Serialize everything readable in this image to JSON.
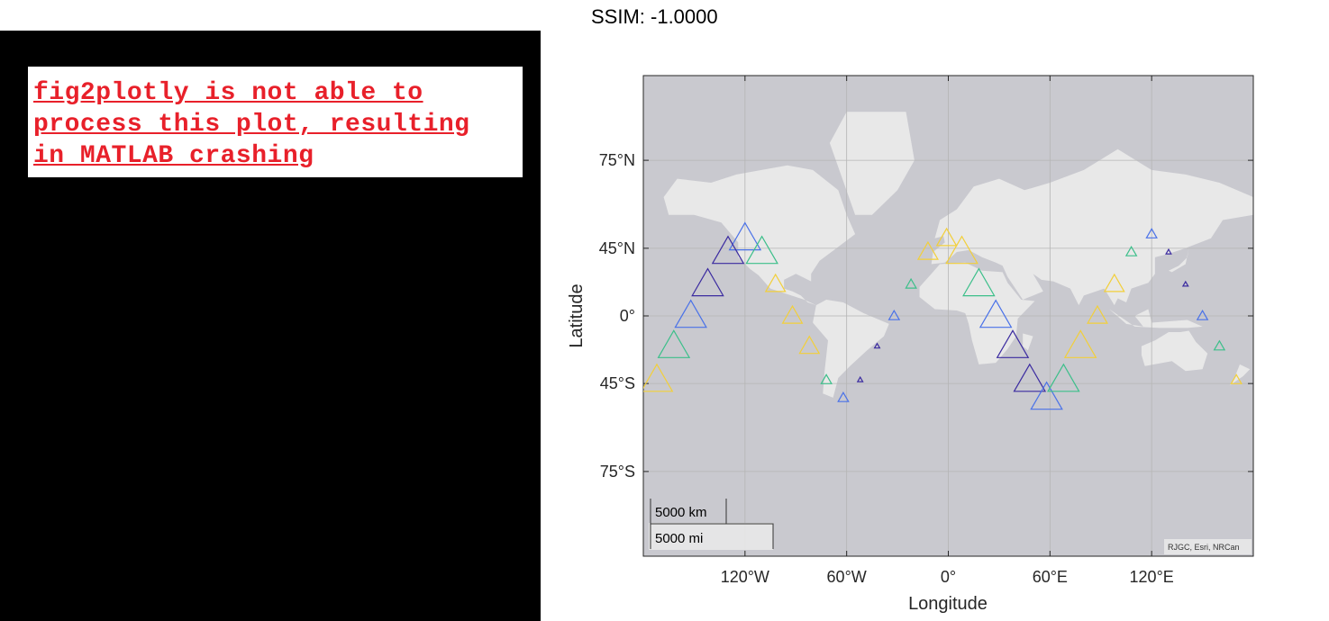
{
  "error_panel": {
    "lines": [
      "fig2plotly is not able to",
      "process this plot, resulting",
      "in MATLAB crashing"
    ]
  },
  "chart_data": {
    "type": "scatter",
    "title": "SSIM: -1.0000",
    "xlabel": "Longitude",
    "ylabel": "Latitude",
    "xlim": [
      -180,
      180
    ],
    "ylim": [
      -85,
      85
    ],
    "grid": true,
    "x_ticks": [
      {
        "value": -120,
        "label": "120°W"
      },
      {
        "value": -60,
        "label": "60°W"
      },
      {
        "value": 0,
        "label": "0°"
      },
      {
        "value": 60,
        "label": "60°E"
      },
      {
        "value": 120,
        "label": "120°E"
      }
    ],
    "y_ticks": [
      {
        "value": 75,
        "label": "75°N"
      },
      {
        "value": 45,
        "label": "45°N"
      },
      {
        "value": 0,
        "label": "0°"
      },
      {
        "value": -45,
        "label": "45°S"
      },
      {
        "value": -75,
        "label": "75°S"
      }
    ],
    "marker": "triangle",
    "colors": {
      "purple": "#3b2ba0",
      "blue": "#4a72e8",
      "green": "#3cbf8a",
      "yellow": "#f2cf3a",
      "ocean": "#c9c9cf",
      "land": "#e8e8e8"
    },
    "points": [
      {
        "lon": -120,
        "lat": 50,
        "size": 3,
        "color": "blue"
      },
      {
        "lon": -130,
        "lat": 43,
        "size": 3,
        "color": "purple"
      },
      {
        "lon": -110,
        "lat": 43,
        "size": 3,
        "color": "green"
      },
      {
        "lon": -142,
        "lat": 23,
        "size": 3,
        "color": "purple"
      },
      {
        "lon": -102,
        "lat": 23,
        "size": 2,
        "color": "yellow"
      },
      {
        "lon": -152,
        "lat": 0,
        "size": 3,
        "color": "blue"
      },
      {
        "lon": -92,
        "lat": 0,
        "size": 2,
        "color": "yellow"
      },
      {
        "lon": -162,
        "lat": -22,
        "size": 3,
        "color": "green"
      },
      {
        "lon": -82,
        "lat": -22,
        "size": 2,
        "color": "yellow"
      },
      {
        "lon": -172,
        "lat": -43,
        "size": 3,
        "color": "yellow"
      },
      {
        "lon": -72,
        "lat": -43,
        "size": 1,
        "color": "green"
      },
      {
        "lon": -62,
        "lat": -52,
        "size": 1,
        "color": "blue"
      },
      {
        "lon": -52,
        "lat": -43,
        "size": 0,
        "color": "purple"
      },
      {
        "lon": -42,
        "lat": -22,
        "size": 0,
        "color": "purple"
      },
      {
        "lon": -32,
        "lat": 0,
        "size": 1,
        "color": "blue"
      },
      {
        "lon": -22,
        "lat": 23,
        "size": 1,
        "color": "green"
      },
      {
        "lon": -12,
        "lat": 43,
        "size": 2,
        "color": "yellow"
      },
      {
        "lon": -1,
        "lat": 50,
        "size": 2,
        "color": "yellow"
      },
      {
        "lon": 8,
        "lat": 43,
        "size": 3,
        "color": "yellow"
      },
      {
        "lon": 18,
        "lat": 23,
        "size": 3,
        "color": "green"
      },
      {
        "lon": 28,
        "lat": 0,
        "size": 3,
        "color": "blue"
      },
      {
        "lon": 38,
        "lat": -22,
        "size": 3,
        "color": "purple"
      },
      {
        "lon": 48,
        "lat": -43,
        "size": 3,
        "color": "purple"
      },
      {
        "lon": 58,
        "lat": -52,
        "size": 3,
        "color": "blue"
      },
      {
        "lon": 68,
        "lat": -43,
        "size": 3,
        "color": "green"
      },
      {
        "lon": 78,
        "lat": -22,
        "size": 3,
        "color": "yellow"
      },
      {
        "lon": 88,
        "lat": 0,
        "size": 2,
        "color": "yellow"
      },
      {
        "lon": 98,
        "lat": 23,
        "size": 2,
        "color": "yellow"
      },
      {
        "lon": 108,
        "lat": 43,
        "size": 1,
        "color": "green"
      },
      {
        "lon": 120,
        "lat": 52,
        "size": 1,
        "color": "blue"
      },
      {
        "lon": 130,
        "lat": 43,
        "size": 0,
        "color": "purple"
      },
      {
        "lon": 140,
        "lat": 23,
        "size": 0,
        "color": "purple"
      },
      {
        "lon": 150,
        "lat": 0,
        "size": 1,
        "color": "blue"
      },
      {
        "lon": 160,
        "lat": -22,
        "size": 1,
        "color": "green"
      },
      {
        "lon": 170,
        "lat": -43,
        "size": 1,
        "color": "yellow"
      }
    ],
    "scalebar": {
      "km_label": "5000 km",
      "mi_label": "5000 mi"
    },
    "attribution": "RJGC, Esri, NRCan"
  }
}
